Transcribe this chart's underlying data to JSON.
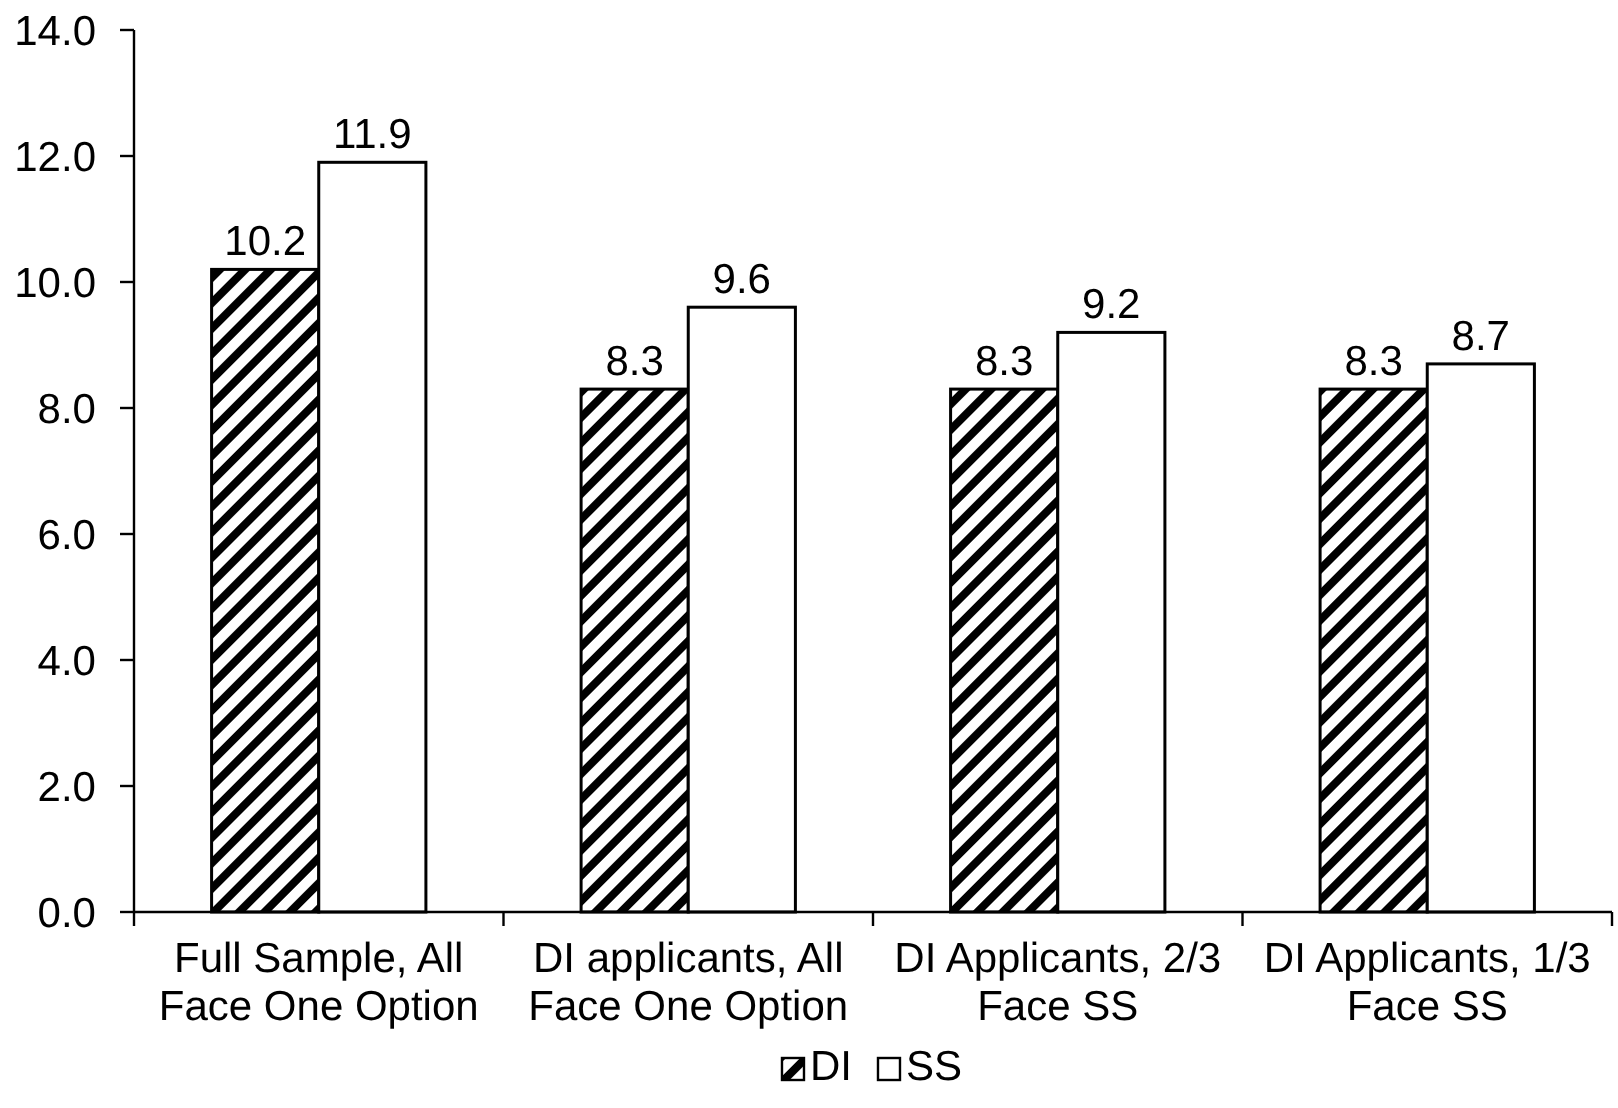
{
  "chart_data": {
    "type": "bar",
    "categories": [
      "Full Sample, All Face One Option",
      "DI applicants, All Face One Option",
      "DI Applicants, 2/3 Face SS",
      "DI Applicants, 1/3 Face SS"
    ],
    "series": [
      {
        "name": "DI",
        "color": "#000000",
        "values": [
          10.2,
          8.3,
          8.3,
          8.3
        ]
      },
      {
        "name": "SS",
        "color": "#ffffff",
        "values": [
          11.9,
          9.6,
          9.2,
          8.7
        ]
      }
    ],
    "ylim": [
      0,
      14
    ],
    "yticks": [
      {
        "value": 0,
        "label": "0.0"
      },
      {
        "value": 2,
        "label": "2.0"
      },
      {
        "value": 4,
        "label": "4.0"
      },
      {
        "value": 6,
        "label": "6.0"
      },
      {
        "value": 8,
        "label": "8.0"
      },
      {
        "value": 10,
        "label": "10.0"
      },
      {
        "value": 12,
        "label": "12.0"
      },
      {
        "value": 14,
        "label": "14.0"
      }
    ],
    "data_labels": true,
    "legend": "bottom"
  }
}
